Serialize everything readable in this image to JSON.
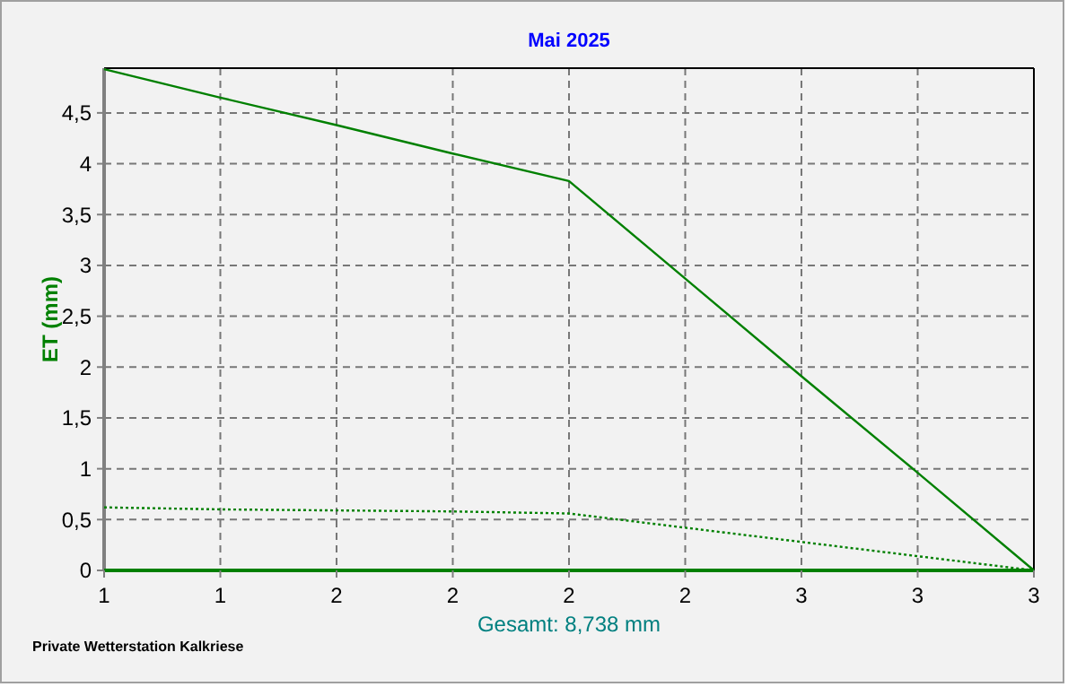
{
  "chart_data": {
    "type": "line",
    "title": "Mai 2025",
    "ylabel": "ET  (mm)",
    "ylim": [
      0,
      4.94
    ],
    "categories": [
      "1",
      "1",
      "2",
      "2",
      "2",
      "2",
      "3",
      "3",
      "3"
    ],
    "yticks": [
      0,
      {
        "value": 0.5,
        "label": "0,5"
      },
      1,
      {
        "value": 1.5,
        "label": "1,5"
      },
      2,
      {
        "value": 2.5,
        "label": "2,5"
      },
      3,
      {
        "value": 3.5,
        "label": "3,5"
      },
      4,
      {
        "value": 4.5,
        "label": "4,5"
      }
    ],
    "grid": true,
    "marker": "none",
    "series": [
      {
        "color": "#008000",
        "values": [
          4.93,
          4.65,
          4.38,
          4.1,
          3.83,
          2.87,
          1.91,
          0.96,
          0
        ],
        "line_style": "solid"
      },
      {
        "color": "#008000",
        "values": [
          0.62,
          0.6,
          0.59,
          0.58,
          0.56,
          0.42,
          0.28,
          0.14,
          0
        ],
        "line_style": "dotted"
      },
      {
        "color": "#008000",
        "values": [
          0,
          0,
          0,
          0,
          0,
          0,
          0,
          0,
          0
        ],
        "line_style": "solid"
      }
    ],
    "annotations": [
      "Gesamt: 8,738 mm",
      "Private Wetterstation Kalkriese"
    ]
  }
}
